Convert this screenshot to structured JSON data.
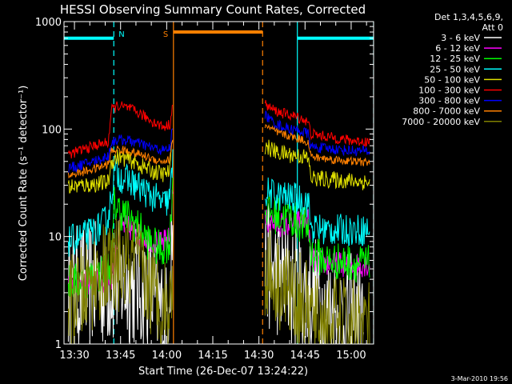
{
  "chart_data": {
    "type": "line",
    "title": "HESSI Observing Summary Count Rates, Corrected",
    "xlabel": "Start Time (26-Dec-07 13:24:22)",
    "ylabel": "Corrected Count Rate (s⁻¹ detector⁻¹)",
    "yscale": "log",
    "xlim_minutes": [
      -3.4,
      97.3
    ],
    "ylim": [
      1,
      1000
    ],
    "x_ticks": [
      {
        "minute": 0,
        "label": "13:30"
      },
      {
        "minute": 15,
        "label": "13:45"
      },
      {
        "minute": 30,
        "label": "14:00"
      },
      {
        "minute": 45,
        "label": "14:15"
      },
      {
        "minute": 60,
        "label": "14:30"
      },
      {
        "minute": 75,
        "label": "14:45"
      },
      {
        "minute": 90,
        "label": "15:00"
      }
    ],
    "y_ticks": [
      {
        "value": 1,
        "label": "1"
      },
      {
        "value": 10,
        "label": "10"
      },
      {
        "value": 100,
        "label": "100"
      },
      {
        "value": 1000,
        "label": "1000"
      }
    ],
    "legend_header": [
      "Det 1,3,4,5,6,9,",
      "Att 0"
    ],
    "legend_position": "right",
    "footer_date": "3-Mar-2010 19:56",
    "markers": [
      {
        "type": "night",
        "label": "N",
        "color": "#00ffff",
        "bar_minutes": [
          -3.4,
          12.8
        ],
        "bar_y": 700,
        "dashed_lines_minutes": [
          12.8
        ],
        "solid_lines_minutes": []
      },
      {
        "type": "saa",
        "label": "S",
        "color": "#ff8000",
        "bar_minutes": [
          32.2,
          61.2
        ],
        "bar_y": 800,
        "dashed_lines_minutes": [
          61.2
        ],
        "solid_lines_minutes": [
          32.2
        ]
      },
      {
        "type": "night",
        "label": "",
        "color": "#00ffff",
        "bar_minutes": [
          72.5,
          97.3
        ],
        "bar_y": 700,
        "dashed_lines_minutes": [
          97.3
        ],
        "solid_lines_minutes": [
          72.5
        ]
      }
    ],
    "series": [
      {
        "name": "3 - 6 keV",
        "color": "#ffffff",
        "noise": 0.6,
        "segments": [
          [
            [
              -2,
              3.2
            ],
            [
              5,
              3.5
            ],
            [
              10,
              3.6
            ],
            [
              15,
              3.8
            ],
            [
              20,
              3.6
            ],
            [
              25,
              3.0
            ],
            [
              28,
              2.0
            ],
            [
              30,
              1.5
            ],
            [
              31,
              5.0
            ],
            [
              32,
              12
            ]
          ],
          [
            [
              62,
              5.5
            ],
            [
              66,
              4.5
            ],
            [
              70,
              3.5
            ],
            [
              74,
              3.0
            ],
            [
              78,
              2.8
            ],
            [
              82,
              2.0
            ],
            [
              86,
              1.8
            ],
            [
              90,
              1.8
            ],
            [
              94,
              1.5
            ]
          ]
        ]
      },
      {
        "name": "6 - 12 keV",
        "color": "#ff00ff",
        "noise": 0.12,
        "segments": [
          [
            [
              -2,
              3.6
            ],
            [
              5,
              3.7
            ],
            [
              10,
              3.9
            ],
            [
              12,
              4.2
            ],
            [
              15,
              13
            ],
            [
              20,
              11
            ],
            [
              24,
              9.5
            ],
            [
              28,
              8.5
            ],
            [
              31,
              9.5
            ],
            [
              32,
              30
            ]
          ],
          [
            [
              62,
              14
            ],
            [
              65,
              13
            ],
            [
              70,
              13
            ],
            [
              74,
              14
            ],
            [
              76,
              14
            ],
            [
              77,
              6
            ],
            [
              82,
              5.6
            ],
            [
              90,
              5.5
            ],
            [
              96,
              5.5
            ]
          ]
        ]
      },
      {
        "name": "12 - 25 keV",
        "color": "#00ff00",
        "noise": 0.18,
        "segments": [
          [
            [
              -2,
              3.7
            ],
            [
              3,
              3.9
            ],
            [
              8,
              4.4
            ],
            [
              12,
              5.5
            ],
            [
              13,
              20
            ],
            [
              15,
              17
            ],
            [
              20,
              13
            ],
            [
              24,
              9
            ],
            [
              28,
              7.5
            ],
            [
              31,
              9
            ],
            [
              32,
              35
            ]
          ],
          [
            [
              62,
              18
            ],
            [
              65,
              16
            ],
            [
              70,
              15
            ],
            [
              74,
              13
            ],
            [
              76,
              12
            ],
            [
              77,
              7
            ],
            [
              82,
              6
            ],
            [
              90,
              5.7
            ],
            [
              96,
              5.5
            ]
          ]
        ]
      },
      {
        "name": "25 - 50 keV",
        "color": "#00ffff",
        "noise": 0.15,
        "segments": [
          [
            [
              -2,
              9
            ],
            [
              3,
              10
            ],
            [
              8,
              12
            ],
            [
              11,
              15
            ],
            [
              13,
              40
            ],
            [
              15,
              36
            ],
            [
              20,
              30
            ],
            [
              25,
              24
            ],
            [
              29,
              20
            ],
            [
              31,
              22
            ],
            [
              32,
              50
            ]
          ],
          [
            [
              62,
              26
            ],
            [
              66,
              24
            ],
            [
              70,
              23
            ],
            [
              74,
              22
            ],
            [
              76,
              21
            ],
            [
              77,
              12
            ],
            [
              82,
              11.5
            ],
            [
              90,
              11.5
            ],
            [
              96,
              11.5
            ]
          ]
        ]
      },
      {
        "name": "50 - 100 keV",
        "color": "#e0e000",
        "noise": 0.08,
        "segments": [
          [
            [
              -2,
              29
            ],
            [
              3,
              30
            ],
            [
              8,
              31
            ],
            [
              11,
              32
            ],
            [
              12,
              50
            ],
            [
              14,
              55
            ],
            [
              18,
              52
            ],
            [
              22,
              45
            ],
            [
              26,
              40
            ],
            [
              29,
              38
            ],
            [
              31,
              40
            ],
            [
              32,
              90
            ]
          ],
          [
            [
              62,
              70
            ],
            [
              64,
              65
            ],
            [
              66,
              60
            ],
            [
              70,
              58
            ],
            [
              74,
              56
            ],
            [
              76,
              53
            ],
            [
              77,
              35
            ],
            [
              82,
              34
            ],
            [
              90,
              33
            ],
            [
              96,
              32
            ]
          ]
        ]
      },
      {
        "name": "100 - 300 keV",
        "color": "#ff0000",
        "noise": 0.05,
        "segments": [
          [
            [
              -2,
              58
            ],
            [
              3,
              65
            ],
            [
              8,
              72
            ],
            [
              11,
              75
            ],
            [
              12,
              150
            ],
            [
              14,
              165
            ],
            [
              18,
              155
            ],
            [
              22,
              135
            ],
            [
              26,
              115
            ],
            [
              29,
              105
            ],
            [
              31,
              110
            ],
            [
              32,
              170
            ]
          ],
          [
            [
              62,
              170
            ],
            [
              64,
              155
            ],
            [
              66,
              145
            ],
            [
              70,
              135
            ],
            [
              74,
              125
            ],
            [
              76,
              115
            ],
            [
              77,
              90
            ],
            [
              82,
              85
            ],
            [
              90,
              78
            ],
            [
              96,
              76
            ]
          ]
        ]
      },
      {
        "name": "300 - 800 keV",
        "color": "#0000ff",
        "noise": 0.05,
        "segments": [
          [
            [
              -2,
              43
            ],
            [
              3,
              47
            ],
            [
              8,
              52
            ],
            [
              11,
              56
            ],
            [
              12,
              75
            ],
            [
              14,
              80
            ],
            [
              18,
              78
            ],
            [
              22,
              72
            ],
            [
              26,
              66
            ],
            [
              29,
              63
            ],
            [
              31,
              66
            ],
            [
              32,
              110
            ]
          ],
          [
            [
              62,
              135
            ],
            [
              64,
              120
            ],
            [
              66,
              110
            ],
            [
              70,
              100
            ],
            [
              74,
              95
            ],
            [
              76,
              90
            ],
            [
              77,
              68
            ],
            [
              82,
              66
            ],
            [
              90,
              63
            ],
            [
              96,
              62
            ]
          ]
        ]
      },
      {
        "name": "800 - 7000 keV",
        "color": "#ff8000",
        "noise": 0.04,
        "segments": [
          [
            [
              -2,
              37
            ],
            [
              3,
              40
            ],
            [
              8,
              44
            ],
            [
              11,
              47
            ],
            [
              12,
              62
            ],
            [
              14,
              65
            ],
            [
              18,
              62
            ],
            [
              22,
              57
            ],
            [
              26,
              52
            ],
            [
              29,
              50
            ],
            [
              31,
              52
            ],
            [
              32,
              80
            ]
          ],
          [
            [
              62,
              110
            ],
            [
              64,
              100
            ],
            [
              66,
              92
            ],
            [
              70,
              86
            ],
            [
              74,
              80
            ],
            [
              76,
              75
            ],
            [
              77,
              55
            ],
            [
              82,
              53
            ],
            [
              90,
              50
            ],
            [
              96,
              49
            ]
          ]
        ]
      },
      {
        "name": "7000 - 20000 keV",
        "color": "#808000",
        "noise": 0.45,
        "segments": [
          [
            [
              -2,
              2.3
            ],
            [
              3,
              3.0
            ],
            [
              8,
              4.5
            ],
            [
              12,
              5.0
            ],
            [
              15,
              5.5
            ],
            [
              20,
              5.5
            ],
            [
              24,
              3.5
            ],
            [
              28,
              2.5
            ],
            [
              31,
              2.3
            ],
            [
              32,
              3
            ]
          ],
          [
            [
              62,
              5.0
            ],
            [
              66,
              4.0
            ],
            [
              70,
              3.0
            ],
            [
              74,
              2.5
            ],
            [
              78,
              1.6
            ],
            [
              82,
              1.6
            ],
            [
              90,
              1.5
            ],
            [
              96,
              1.6
            ]
          ]
        ]
      }
    ]
  }
}
